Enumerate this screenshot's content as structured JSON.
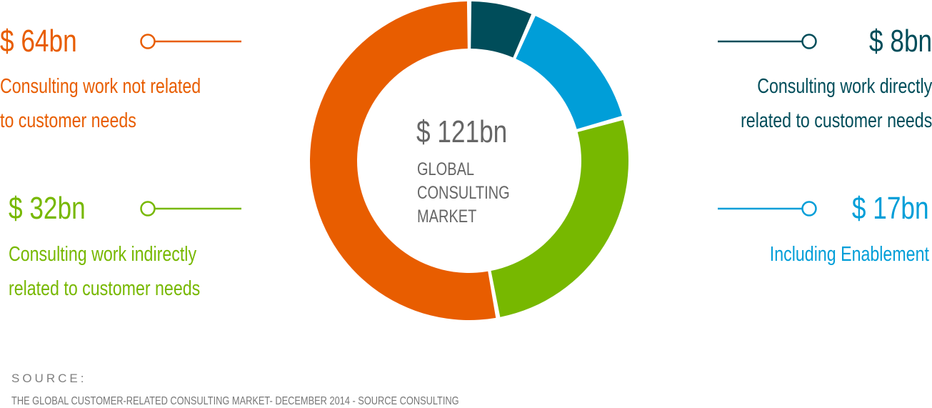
{
  "chart_data": {
    "type": "donut",
    "total_label": "$ 121bn",
    "center_lines": [
      "GLOBAL",
      "CONSULTING",
      "MARKET"
    ],
    "segments": [
      {
        "amount": "$ 8bn",
        "value": 8,
        "description_lines": [
          "Consulting work directly",
          "related to customer needs"
        ],
        "color": "#004d5a"
      },
      {
        "amount": "$ 17bn",
        "value": 17,
        "description_lines": [
          "Including Enablement"
        ],
        "color": "#009ed8"
      },
      {
        "amount": "$ 32bn",
        "value": 32,
        "description_lines": [
          "Consulting work indirectly",
          "related to customer needs"
        ],
        "color": "#77b800"
      },
      {
        "amount": "$ 64bn",
        "value": 64,
        "description_lines": [
          "Consulting work not related",
          "to customer needs"
        ],
        "color": "#e85d00"
      }
    ]
  },
  "source": {
    "title": "SOURCE:",
    "text": "THE GLOBAL CUSTOMER-RELATED CONSULTING MARKET- DECEMBER 2014 - SOURCE CONSULTING"
  }
}
